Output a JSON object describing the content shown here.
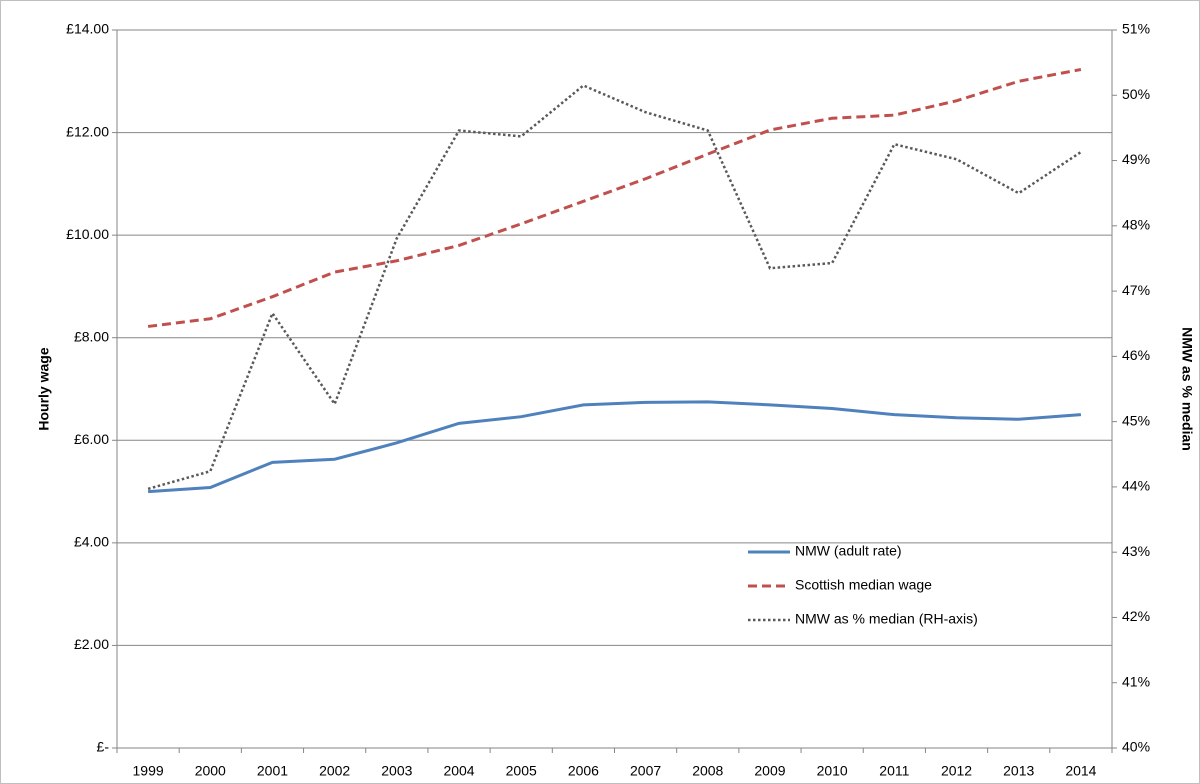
{
  "chart_data": {
    "type": "line",
    "y_label": "Hourly wage",
    "y2_label": "NMW as % median",
    "categories": [
      "1999",
      "2000",
      "2001",
      "2002",
      "2003",
      "2004",
      "2005",
      "2006",
      "2007",
      "2008",
      "2009",
      "2010",
      "2011",
      "2012",
      "2013",
      "2014"
    ],
    "series": [
      {
        "name": "NMW (adult rate)",
        "color": "#4f81bd",
        "dash": "solid",
        "values": [
          5.0,
          5.08,
          5.57,
          5.63,
          5.95,
          6.33,
          6.46,
          6.69,
          6.74,
          6.75,
          6.69,
          6.62,
          6.5,
          6.44,
          6.41,
          6.5
        ]
      },
      {
        "name": "Scottish median wage",
        "color": "#c0504d",
        "dash": "dashed",
        "values": [
          8.22,
          8.37,
          8.8,
          9.28,
          9.5,
          9.8,
          10.22,
          10.66,
          11.1,
          11.58,
          12.05,
          12.28,
          12.34,
          12.62,
          13.0,
          13.23
        ]
      },
      {
        "name": "NMW as % median (RH-axis)",
        "color": "#595959",
        "dash": "dotted",
        "axis": "y2",
        "values": [
          43.97,
          44.24,
          46.66,
          45.27,
          47.81,
          49.46,
          49.37,
          50.15,
          49.74,
          49.46,
          47.35,
          47.43,
          49.25,
          49.02,
          48.5,
          49.13
        ]
      }
    ],
    "ylim": [
      0,
      14
    ],
    "yticks": [
      {
        "value": 0,
        "label": "£-"
      },
      {
        "value": 2,
        "label": "£2.00"
      },
      {
        "value": 4,
        "label": "£4.00"
      },
      {
        "value": 6,
        "label": "£6.00"
      },
      {
        "value": 8,
        "label": "£8.00"
      },
      {
        "value": 10,
        "label": "£10.00"
      },
      {
        "value": 12,
        "label": "£12.00"
      },
      {
        "value": 14,
        "label": "£14.00"
      }
    ],
    "y2lim": [
      40,
      51
    ],
    "y2ticks": [
      {
        "value": 40,
        "label": "40%"
      },
      {
        "value": 41,
        "label": "41%"
      },
      {
        "value": 42,
        "label": "42%"
      },
      {
        "value": 43,
        "label": "43%"
      },
      {
        "value": 44,
        "label": "44%"
      },
      {
        "value": 45,
        "label": "45%"
      },
      {
        "value": 46,
        "label": "46%"
      },
      {
        "value": 47,
        "label": "47%"
      },
      {
        "value": 48,
        "label": "48%"
      },
      {
        "value": 49,
        "label": "49%"
      },
      {
        "value": 50,
        "label": "50%"
      },
      {
        "value": 51,
        "label": "51%"
      }
    ],
    "grid": true,
    "legend": "lower right"
  }
}
